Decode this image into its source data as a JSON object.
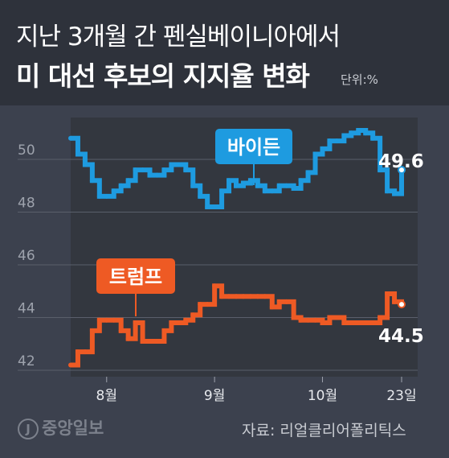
{
  "header": {
    "title_line1": "지난 3개월 간 펜실베이니아에서",
    "title_line2": "미 대선 후보의 지지율 변화",
    "unit": "단위:%"
  },
  "footer": {
    "logo": "중앙일보",
    "source": "자료: 리얼클리어폴리틱스"
  },
  "colors": {
    "biden": "#1e9be0",
    "trump": "#ee5a24",
    "plot_bg": "#33373f",
    "page_bg": "#3c414e"
  },
  "chart_data": {
    "type": "line",
    "ylim": [
      42,
      51.5
    ],
    "y_ticks": [
      "42",
      "44",
      "46",
      "48",
      "50"
    ],
    "x_ticks": [
      "8월",
      "9월",
      "10월",
      "23일"
    ],
    "x": [
      "7/23",
      "7/25",
      "7/27",
      "7/29",
      "7/31",
      "8/2",
      "8/4",
      "8/6",
      "8/8",
      "8/10",
      "8/12",
      "8/14",
      "8/16",
      "8/18",
      "8/20",
      "8/22",
      "8/24",
      "8/26",
      "8/28",
      "8/30",
      "9/1",
      "9/3",
      "9/5",
      "9/7",
      "9/9",
      "9/11",
      "9/13",
      "9/15",
      "9/17",
      "9/19",
      "9/21",
      "9/23",
      "9/25",
      "9/27",
      "9/29",
      "10/1",
      "10/3",
      "10/5",
      "10/7",
      "10/9",
      "10/11",
      "10/13",
      "10/15",
      "10/17",
      "10/19",
      "10/21",
      "10/23"
    ],
    "series": [
      {
        "name": "바이든",
        "label_value": "49.6",
        "values": [
          50.8,
          50.2,
          49.8,
          49.2,
          48.6,
          48.6,
          48.8,
          49.0,
          49.2,
          49.6,
          49.6,
          49.4,
          49.4,
          49.6,
          49.8,
          49.8,
          49.6,
          49.0,
          48.6,
          48.2,
          48.2,
          48.8,
          49.2,
          49.0,
          49.1,
          49.2,
          49.0,
          48.8,
          48.8,
          49.0,
          49.0,
          48.9,
          49.2,
          49.5,
          50.2,
          50.4,
          50.7,
          50.7,
          50.9,
          51.0,
          51.1,
          51.0,
          50.8,
          49.6,
          48.8,
          48.7,
          49.6
        ]
      },
      {
        "name": "트럼프",
        "label_value": "44.5",
        "values": [
          42.2,
          42.7,
          42.7,
          43.5,
          43.9,
          43.9,
          43.9,
          43.5,
          43.2,
          43.8,
          43.1,
          43.1,
          43.1,
          43.5,
          43.8,
          43.8,
          43.9,
          44.1,
          44.5,
          44.5,
          45.2,
          44.8,
          44.8,
          44.8,
          44.8,
          44.8,
          44.8,
          44.8,
          44.4,
          44.6,
          44.6,
          44.0,
          43.9,
          43.9,
          43.9,
          43.8,
          44.0,
          44.0,
          43.8,
          43.8,
          43.8,
          43.8,
          43.8,
          44.0,
          44.9,
          44.6,
          44.5
        ]
      }
    ]
  }
}
